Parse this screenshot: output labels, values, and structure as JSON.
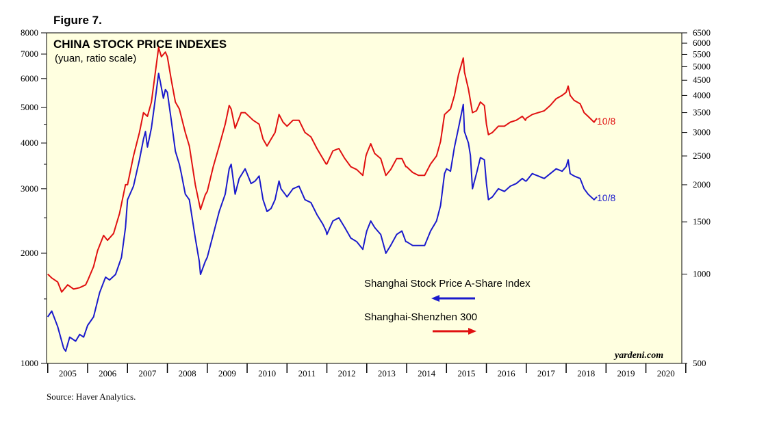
{
  "figure_label": "Figure 7.",
  "source": "Source: Haver Analytics.",
  "brand": "yardeni.com",
  "colors": {
    "shanghai": "#1a1acc",
    "csi300": "#e01010",
    "plot_bg": "#ffffe0"
  },
  "chart_data": {
    "type": "line",
    "title": "CHINA STOCK PRICE INDEXES",
    "subtitle": "(yuan, ratio scale)",
    "x_tick_labels": [
      "2005",
      "2006",
      "2007",
      "2008",
      "2009",
      "2010",
      "2011",
      "2012",
      "2013",
      "2014",
      "2015",
      "2016",
      "2017",
      "2018",
      "2019",
      "2020"
    ],
    "xlim": [
      2004.97,
      2020.9
    ],
    "y_left": {
      "scale": "log",
      "ylim": [
        1000,
        8000
      ],
      "tick_labels": [
        "8000",
        "7000",
        "6000",
        "5000",
        "4000",
        "3000",
        "2000",
        "1000"
      ],
      "ticks": [
        8000,
        7000,
        6000,
        5000,
        4000,
        3000,
        2000,
        1000
      ]
    },
    "y_right": {
      "scale": "log",
      "ylim": [
        500,
        6500
      ],
      "tick_labels": [
        "6500",
        "6000",
        "5500",
        "5000",
        "4500",
        "4000",
        "3500",
        "3000",
        "2500",
        "2000",
        "1500",
        "1000",
        "500"
      ],
      "ticks": [
        6500,
        6000,
        5500,
        5000,
        4500,
        4000,
        3500,
        3000,
        2500,
        2000,
        1500,
        1000,
        500
      ]
    },
    "series": [
      {
        "name": "Shanghai Stock Price A-Share Index",
        "axis": "left",
        "end_label": "10/8",
        "points": [
          [
            2005.0,
            1340
          ],
          [
            2005.1,
            1390
          ],
          [
            2005.25,
            1260
          ],
          [
            2005.4,
            1100
          ],
          [
            2005.45,
            1080
          ],
          [
            2005.55,
            1180
          ],
          [
            2005.7,
            1150
          ],
          [
            2005.8,
            1200
          ],
          [
            2005.9,
            1180
          ],
          [
            2006.0,
            1270
          ],
          [
            2006.15,
            1340
          ],
          [
            2006.3,
            1560
          ],
          [
            2006.45,
            1720
          ],
          [
            2006.55,
            1690
          ],
          [
            2006.7,
            1750
          ],
          [
            2006.85,
            1950
          ],
          [
            2006.95,
            2350
          ],
          [
            2007.0,
            2800
          ],
          [
            2007.15,
            3050
          ],
          [
            2007.3,
            3600
          ],
          [
            2007.4,
            4100
          ],
          [
            2007.45,
            4300
          ],
          [
            2007.5,
            3900
          ],
          [
            2007.6,
            4400
          ],
          [
            2007.7,
            5300
          ],
          [
            2007.78,
            6200
          ],
          [
            2007.82,
            5900
          ],
          [
            2007.9,
            5300
          ],
          [
            2007.95,
            5600
          ],
          [
            2008.0,
            5500
          ],
          [
            2008.1,
            4600
          ],
          [
            2008.2,
            3800
          ],
          [
            2008.3,
            3500
          ],
          [
            2008.35,
            3300
          ],
          [
            2008.45,
            2900
          ],
          [
            2008.55,
            2800
          ],
          [
            2008.7,
            2200
          ],
          [
            2008.8,
            1900
          ],
          [
            2008.83,
            1750
          ],
          [
            2008.95,
            1900
          ],
          [
            2009.0,
            1950
          ],
          [
            2009.15,
            2250
          ],
          [
            2009.3,
            2600
          ],
          [
            2009.45,
            2900
          ],
          [
            2009.55,
            3400
          ],
          [
            2009.6,
            3500
          ],
          [
            2009.7,
            2900
          ],
          [
            2009.8,
            3200
          ],
          [
            2009.95,
            3400
          ],
          [
            2010.0,
            3300
          ],
          [
            2010.1,
            3100
          ],
          [
            2010.2,
            3150
          ],
          [
            2010.3,
            3250
          ],
          [
            2010.4,
            2800
          ],
          [
            2010.5,
            2600
          ],
          [
            2010.6,
            2650
          ],
          [
            2010.7,
            2800
          ],
          [
            2010.8,
            3150
          ],
          [
            2010.85,
            3000
          ],
          [
            2010.95,
            2900
          ],
          [
            2011.0,
            2850
          ],
          [
            2011.15,
            3000
          ],
          [
            2011.3,
            3050
          ],
          [
            2011.45,
            2800
          ],
          [
            2011.6,
            2750
          ],
          [
            2011.75,
            2550
          ],
          [
            2011.9,
            2400
          ],
          [
            2011.98,
            2300
          ],
          [
            2012.0,
            2250
          ],
          [
            2012.15,
            2450
          ],
          [
            2012.3,
            2500
          ],
          [
            2012.45,
            2350
          ],
          [
            2012.6,
            2200
          ],
          [
            2012.75,
            2150
          ],
          [
            2012.9,
            2050
          ],
          [
            2012.98,
            2250
          ],
          [
            2013.0,
            2300
          ],
          [
            2013.1,
            2450
          ],
          [
            2013.2,
            2350
          ],
          [
            2013.35,
            2250
          ],
          [
            2013.48,
            2000
          ],
          [
            2013.6,
            2100
          ],
          [
            2013.75,
            2250
          ],
          [
            2013.88,
            2300
          ],
          [
            2013.98,
            2150
          ],
          [
            2014.0,
            2150
          ],
          [
            2014.15,
            2100
          ],
          [
            2014.3,
            2100
          ],
          [
            2014.45,
            2100
          ],
          [
            2014.6,
            2300
          ],
          [
            2014.75,
            2450
          ],
          [
            2014.85,
            2700
          ],
          [
            2014.95,
            3300
          ],
          [
            2015.0,
            3400
          ],
          [
            2015.1,
            3350
          ],
          [
            2015.2,
            3900
          ],
          [
            2015.3,
            4400
          ],
          [
            2015.42,
            5100
          ],
          [
            2015.45,
            4300
          ],
          [
            2015.55,
            4000
          ],
          [
            2015.6,
            3700
          ],
          [
            2015.65,
            3000
          ],
          [
            2015.75,
            3300
          ],
          [
            2015.85,
            3650
          ],
          [
            2015.95,
            3600
          ],
          [
            2016.0,
            3100
          ],
          [
            2016.05,
            2800
          ],
          [
            2016.15,
            2850
          ],
          [
            2016.3,
            3000
          ],
          [
            2016.45,
            2950
          ],
          [
            2016.6,
            3050
          ],
          [
            2016.75,
            3100
          ],
          [
            2016.9,
            3200
          ],
          [
            2016.98,
            3150
          ],
          [
            2017.0,
            3150
          ],
          [
            2017.15,
            3300
          ],
          [
            2017.3,
            3250
          ],
          [
            2017.45,
            3200
          ],
          [
            2017.6,
            3300
          ],
          [
            2017.75,
            3400
          ],
          [
            2017.9,
            3350
          ],
          [
            2018.0,
            3450
          ],
          [
            2018.05,
            3600
          ],
          [
            2018.1,
            3300
          ],
          [
            2018.2,
            3250
          ],
          [
            2018.35,
            3200
          ],
          [
            2018.45,
            3000
          ],
          [
            2018.55,
            2900
          ],
          [
            2018.7,
            2800
          ],
          [
            2018.77,
            2850
          ]
        ]
      },
      {
        "name": "Shanghai-Shenzhen 300",
        "axis": "right",
        "end_label": "10/8",
        "points": [
          [
            2005.0,
            1000
          ],
          [
            2005.1,
            970
          ],
          [
            2005.25,
            940
          ],
          [
            2005.35,
            870
          ],
          [
            2005.5,
            920
          ],
          [
            2005.65,
            890
          ],
          [
            2005.8,
            900
          ],
          [
            2005.95,
            920
          ],
          [
            2006.0,
            950
          ],
          [
            2006.15,
            1060
          ],
          [
            2006.25,
            1200
          ],
          [
            2006.4,
            1350
          ],
          [
            2006.5,
            1300
          ],
          [
            2006.65,
            1370
          ],
          [
            2006.8,
            1600
          ],
          [
            2006.95,
            2000
          ],
          [
            2007.0,
            2000
          ],
          [
            2007.15,
            2500
          ],
          [
            2007.3,
            3000
          ],
          [
            2007.4,
            3500
          ],
          [
            2007.5,
            3400
          ],
          [
            2007.6,
            3800
          ],
          [
            2007.7,
            4800
          ],
          [
            2007.78,
            5800
          ],
          [
            2007.85,
            5400
          ],
          [
            2007.95,
            5600
          ],
          [
            2008.0,
            5400
          ],
          [
            2008.1,
            4500
          ],
          [
            2008.2,
            3800
          ],
          [
            2008.3,
            3600
          ],
          [
            2008.45,
            3000
          ],
          [
            2008.55,
            2700
          ],
          [
            2008.7,
            2000
          ],
          [
            2008.83,
            1650
          ],
          [
            2008.95,
            1850
          ],
          [
            2009.0,
            1900
          ],
          [
            2009.15,
            2300
          ],
          [
            2009.3,
            2700
          ],
          [
            2009.45,
            3200
          ],
          [
            2009.55,
            3700
          ],
          [
            2009.6,
            3600
          ],
          [
            2009.7,
            3100
          ],
          [
            2009.85,
            3500
          ],
          [
            2009.95,
            3500
          ],
          [
            2010.0,
            3450
          ],
          [
            2010.15,
            3300
          ],
          [
            2010.3,
            3200
          ],
          [
            2010.4,
            2850
          ],
          [
            2010.5,
            2700
          ],
          [
            2010.6,
            2850
          ],
          [
            2010.7,
            3000
          ],
          [
            2010.8,
            3450
          ],
          [
            2010.9,
            3250
          ],
          [
            2011.0,
            3150
          ],
          [
            2011.15,
            3300
          ],
          [
            2011.3,
            3300
          ],
          [
            2011.45,
            3000
          ],
          [
            2011.6,
            2900
          ],
          [
            2011.75,
            2650
          ],
          [
            2011.9,
            2450
          ],
          [
            2011.98,
            2350
          ],
          [
            2012.0,
            2350
          ],
          [
            2012.15,
            2600
          ],
          [
            2012.3,
            2650
          ],
          [
            2012.45,
            2450
          ],
          [
            2012.6,
            2300
          ],
          [
            2012.75,
            2250
          ],
          [
            2012.9,
            2150
          ],
          [
            2012.98,
            2500
          ],
          [
            2013.0,
            2550
          ],
          [
            2013.1,
            2750
          ],
          [
            2013.2,
            2550
          ],
          [
            2013.35,
            2450
          ],
          [
            2013.48,
            2150
          ],
          [
            2013.6,
            2250
          ],
          [
            2013.75,
            2450
          ],
          [
            2013.88,
            2450
          ],
          [
            2013.98,
            2300
          ],
          [
            2014.0,
            2300
          ],
          [
            2014.15,
            2200
          ],
          [
            2014.3,
            2150
          ],
          [
            2014.45,
            2150
          ],
          [
            2014.6,
            2350
          ],
          [
            2014.75,
            2500
          ],
          [
            2014.85,
            2800
          ],
          [
            2014.95,
            3450
          ],
          [
            2015.0,
            3500
          ],
          [
            2015.1,
            3600
          ],
          [
            2015.2,
            4000
          ],
          [
            2015.3,
            4700
          ],
          [
            2015.42,
            5350
          ],
          [
            2015.45,
            4800
          ],
          [
            2015.55,
            4200
          ],
          [
            2015.65,
            3500
          ],
          [
            2015.75,
            3550
          ],
          [
            2015.85,
            3800
          ],
          [
            2015.95,
            3700
          ],
          [
            2016.0,
            3200
          ],
          [
            2016.05,
            2950
          ],
          [
            2016.15,
            3000
          ],
          [
            2016.3,
            3150
          ],
          [
            2016.45,
            3150
          ],
          [
            2016.6,
            3250
          ],
          [
            2016.75,
            3300
          ],
          [
            2016.9,
            3400
          ],
          [
            2016.98,
            3300
          ],
          [
            2017.0,
            3350
          ],
          [
            2017.15,
            3450
          ],
          [
            2017.3,
            3500
          ],
          [
            2017.45,
            3550
          ],
          [
            2017.6,
            3700
          ],
          [
            2017.75,
            3900
          ],
          [
            2017.9,
            4000
          ],
          [
            2018.0,
            4100
          ],
          [
            2018.05,
            4300
          ],
          [
            2018.1,
            4000
          ],
          [
            2018.2,
            3850
          ],
          [
            2018.35,
            3750
          ],
          [
            2018.45,
            3500
          ],
          [
            2018.55,
            3400
          ],
          [
            2018.7,
            3250
          ],
          [
            2018.77,
            3350
          ]
        ]
      }
    ],
    "legend": [
      {
        "label": "Shanghai Stock Price A-Share Index",
        "arrow": "left",
        "color": "#1a1acc"
      },
      {
        "label": "Shanghai-Shenzhen 300",
        "arrow": "right",
        "color": "#e01010"
      }
    ]
  }
}
